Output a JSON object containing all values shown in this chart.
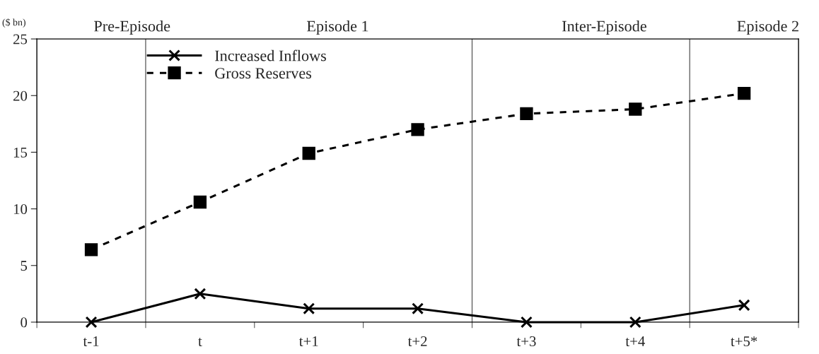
{
  "chart_data": {
    "type": "line",
    "ylabel": "($ bn)",
    "categories": [
      "t-1",
      "t",
      "t+1",
      "t+2",
      "t+3",
      "t+4",
      "t+5*"
    ],
    "series": [
      {
        "name": "Increased Inflows",
        "color": "#000000",
        "values": [
          0,
          2.5,
          1.2,
          1.2,
          0,
          0,
          1.5
        ],
        "marker": "cross",
        "line_style": "solid"
      },
      {
        "name": "Gross Reserves",
        "color": "#000000",
        "values": [
          6.4,
          10.6,
          14.9,
          17.0,
          18.4,
          18.8,
          20.2
        ],
        "marker": "square",
        "line_style": "dashed"
      }
    ],
    "ylim": [
      0,
      25
    ],
    "yticks": [
      0,
      5,
      10,
      15,
      20,
      25
    ],
    "annotations": [
      "Pre-Episode",
      "Episode 1",
      "Inter-Episode",
      "Episode 2"
    ],
    "grid": false,
    "legend": "top left"
  }
}
